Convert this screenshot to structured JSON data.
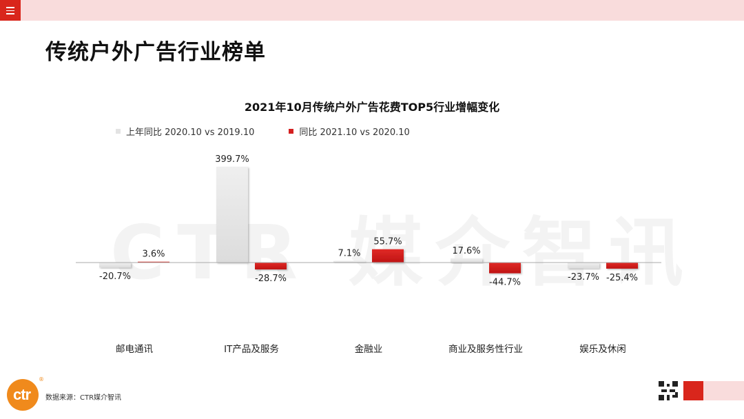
{
  "header": {
    "page_title": "传统户外广告行业榜单"
  },
  "chart_data": {
    "type": "bar",
    "title": "2021年10月传统户外广告花费TOP5行业增幅变化",
    "categories": [
      "邮电通讯",
      "IT产品及服务",
      "金融业",
      "商业及服务性行业",
      "娱乐及休闲"
    ],
    "series": [
      {
        "name": "上年同比 2020.10 vs 2019.10",
        "values": [
          -20.7,
          399.7,
          7.1,
          17.6,
          -23.7
        ],
        "labels": [
          "-20.7%",
          "399.7%",
          "7.1%",
          "17.6%",
          "-23.7%"
        ],
        "color": "#e6e6e6"
      },
      {
        "name": "同比 2021.10 vs 2020.10",
        "values": [
          3.6,
          -28.7,
          55.7,
          -44.7,
          -25.4
        ],
        "labels": [
          "3.6%",
          "-28.7%",
          "55.7%",
          "-44.7%",
          "-25.4%"
        ],
        "color": "#d42020"
      }
    ],
    "legend_position": "top-left",
    "grid": false
  },
  "watermark": "CTR 媒介智讯",
  "footer": {
    "logo_text": "ctr",
    "logo_mark": "®",
    "source": "数据来源：CTR媒介智讯"
  },
  "colors": {
    "accent": "#d9261c",
    "top_bar": "#f9dcdc",
    "logo": "#f08a1c"
  }
}
